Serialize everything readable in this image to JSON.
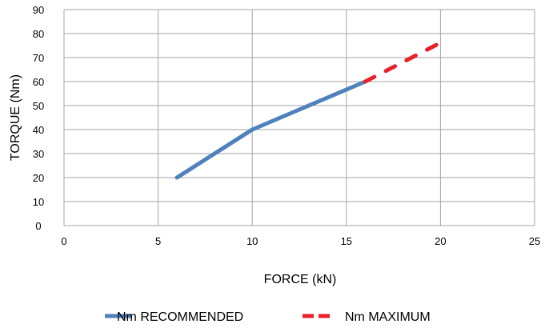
{
  "chart_data": {
    "type": "line",
    "title": "",
    "xlabel": "FORCE (kN)",
    "ylabel": "TORQUE (Nm)",
    "xlim": [
      0,
      25
    ],
    "ylim": [
      0,
      90
    ],
    "x_ticks": [
      0,
      5,
      10,
      15,
      20,
      25
    ],
    "y_ticks": [
      0,
      10,
      20,
      30,
      40,
      50,
      60,
      70,
      80,
      90
    ],
    "grid": true,
    "legend_position": "bottom",
    "series": [
      {
        "name": "Nm RECOMMENDED",
        "color": "#4f81bd",
        "style": "solid",
        "x": [
          6,
          10,
          16
        ],
        "y": [
          20,
          40,
          60
        ]
      },
      {
        "name": "Nm MAXIMUM",
        "color": "#e8202a",
        "style": "dashed",
        "x": [
          16,
          20.2
        ],
        "y": [
          60,
          77
        ]
      }
    ]
  }
}
